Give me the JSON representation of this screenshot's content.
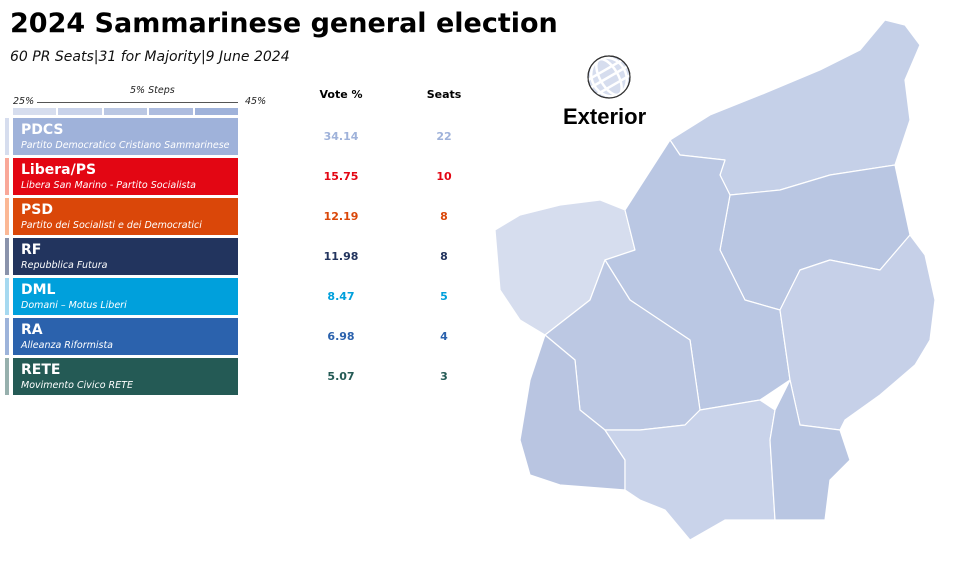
{
  "title": "2024 Sammarinese general election",
  "subtitle": "60 PR Seats|31 for Majority|9 June 2024",
  "chart_data": {
    "type": "table",
    "scale": {
      "min_label": "25%",
      "max_label": "45%",
      "step_label": "5% Steps",
      "step_colors": [
        "#d6ddee",
        "#c8d2ea",
        "#bac7e3",
        "#adbcdf",
        "#9fb2da"
      ]
    },
    "columns": [
      "Vote %",
      "Seats"
    ],
    "parties": [
      {
        "abbr": "PDCS",
        "name": "Partito Democratico Cristiano Sammarinese",
        "vote": "34.14",
        "seats": "22",
        "color": "#9fb2da",
        "tab": "#d6ddee"
      },
      {
        "abbr": "Libera/PS",
        "name": "Libera San Marino - Partito Socialista",
        "vote": "15.75",
        "seats": "10",
        "color": "#e30613",
        "tab": "#f9a899"
      },
      {
        "abbr": "PSD",
        "name": "Partito dei Socialisti e dei Democratici",
        "vote": "12.19",
        "seats": "8",
        "color": "#da4709",
        "tab": "#fbb895"
      },
      {
        "abbr": "RF",
        "name": "Repubblica Futura",
        "vote": "11.98",
        "seats": "8",
        "color": "#22345e",
        "tab": "#8a93ab"
      },
      {
        "abbr": "DML",
        "name": "Domani – Motus Liberi",
        "vote": "8.47",
        "seats": "5",
        "color": "#00a0dc",
        "tab": "#a6d9f0"
      },
      {
        "abbr": "RA",
        "name": "Alleanza Riformista",
        "vote": "6.98",
        "seats": "4",
        "color": "#2b62ad",
        "tab": "#9db3da"
      },
      {
        "abbr": "RETE",
        "name": "Movimento Civico RETE",
        "vote": "5.07",
        "seats": "3",
        "color": "#245a55",
        "tab": "#97b0ad"
      }
    ]
  },
  "map": {
    "exterior_label": "Exterior",
    "globe_icon": "globe-icon"
  }
}
